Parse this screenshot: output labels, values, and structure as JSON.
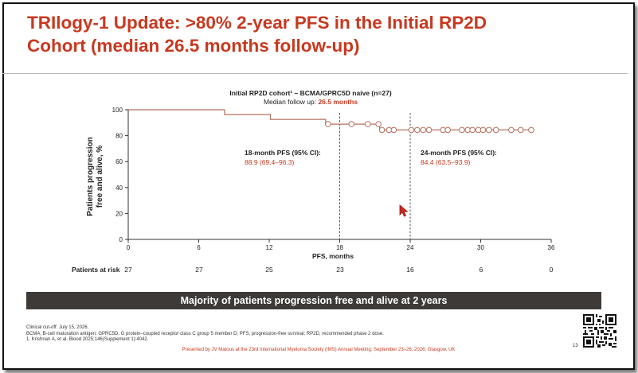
{
  "slide": {
    "title_line1": "TRIlogy-1 Update: >80% 2-year PFS in the Initial RP2D",
    "title_line2": "Cohort (median 26.5 months follow-up)",
    "chart_header_cohort": "Initial RP2D cohort¹ – BCMA/GPRC5D naive (n=27)",
    "chart_header_followup_prefix": "Median follow up: ",
    "chart_header_followup_value": "26.5 months",
    "ylabel_line1": "Patients progression",
    "ylabel_line2": "free and alive, %",
    "xlabel": "PFS, months",
    "annotation_18_label": "18-month PFS (95% CI):",
    "annotation_18_value": "88.9 (69.4–96.3)",
    "annotation_24_label": "24-month PFS (95% CI):",
    "annotation_24_value": "84.4 (63.5–93.9)",
    "risk_label": "Patients at risk",
    "risk_values": [
      "27",
      "27",
      "25",
      "23",
      "16",
      "6",
      "0"
    ],
    "banner": "Majority of patients progression free and alive at 2 years",
    "footnote_1": "Clinical cut-off: July 15, 2026.",
    "footnote_2": "BCMA, B-cell maturation antigen; GPRC5D, G protein–coupled receptor class C group 5 member D; PFS, progression-free survival; RP2D, recommended phase 2 dose.",
    "footnote_3": "1. Krishnan A, et al. Blood 2025;146(Supplement 1):4042.",
    "presented_by": "Presented by JV Matous at the 23rd International Myeloma Society (IMS) Annual Meeting; September 23–26, 2026; Glasgow, UK",
    "page_number": "13"
  },
  "colors": {
    "accent": "#c8381f",
    "curve": "#b5705e",
    "banner_bg": "#3e3a37",
    "dashed": "#555555"
  },
  "chart_data": {
    "type": "line",
    "title": "Initial RP2D cohort¹ – BCMA/GPRC5D naive (n=27)",
    "xlabel": "PFS, months",
    "ylabel": "Patients progression free and alive, %",
    "xlim": [
      0,
      36
    ],
    "ylim": [
      0,
      100
    ],
    "xticks": [
      0,
      6,
      12,
      18,
      24,
      30,
      36
    ],
    "yticks": [
      0,
      20,
      40,
      60,
      80,
      100
    ],
    "grid": false,
    "series": [
      {
        "step_x": [
          0,
          8.2,
          8.2,
          12.1,
          12.1,
          16.8,
          16.8,
          21.4,
          21.4,
          34.3
        ],
        "step_y": [
          100,
          100,
          96.3,
          96.3,
          92.6,
          92.6,
          88.9,
          88.9,
          84.4,
          84.4
        ],
        "censored_x": [
          17.0,
          19.0,
          20.4,
          21.3,
          21.6,
          22.2,
          22.6,
          24.1,
          24.6,
          25.1,
          25.6,
          26.8,
          27.2,
          28.4,
          28.9,
          29.3,
          29.8,
          30.2,
          30.7,
          31.3,
          32.6,
          33.4,
          34.3
        ],
        "censored_y": [
          88.9,
          88.9,
          88.9,
          88.9,
          84.4,
          84.4,
          84.4,
          84.4,
          84.4,
          84.4,
          84.4,
          84.4,
          84.4,
          84.4,
          84.4,
          84.4,
          84.4,
          84.4,
          84.4,
          84.4,
          84.4,
          84.4,
          84.4
        ]
      }
    ],
    "reference_lines_x": [
      18,
      24
    ],
    "annotations": [
      {
        "x": 18,
        "label": "18-month PFS (95% CI):",
        "value": "88.9 (69.4–96.3)"
      },
      {
        "x": 24,
        "label": "24-month PFS (95% CI):",
        "value": "84.4 (63.5–93.9)"
      }
    ],
    "patients_at_risk": {
      "x": [
        0,
        6,
        12,
        18,
        24,
        30,
        36
      ],
      "values": [
        27,
        27,
        25,
        23,
        16,
        6,
        0
      ]
    }
  }
}
